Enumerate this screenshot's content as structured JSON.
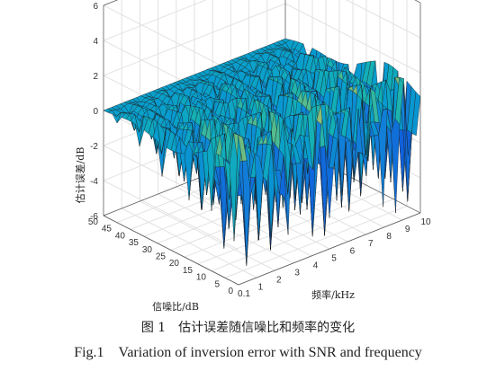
{
  "caption": {
    "cn": "图 1　估计误差随信噪比和频率的变化",
    "en": "Fig.1　Variation of inversion error with SNR and frequency"
  },
  "chart_data": {
    "type": "surface",
    "title": "",
    "zlabel": "估计误差/dB",
    "ylabel": "信噪比/dB",
    "xlabel": "频率/kHz",
    "z_ticks": [
      "6",
      "4",
      "2",
      "0",
      "-2",
      "-4",
      "-6"
    ],
    "snr_ticks": [
      "50",
      "45",
      "40",
      "35",
      "30",
      "25",
      "20",
      "15",
      "10",
      "5",
      "0"
    ],
    "freq_ticks": [
      "0.1",
      "1",
      "2",
      "3",
      "4",
      "5",
      "6",
      "7",
      "8",
      "9",
      "10"
    ],
    "zlim": [
      -6,
      6
    ],
    "snr_lim": [
      0,
      50
    ],
    "freq_lim": [
      0.1,
      10
    ],
    "grid": true,
    "colormap": "parula",
    "description_values": {
      "z_at_high_snr": 0,
      "z_peak_range": [
        -5.5,
        2.5
      ]
    }
  }
}
